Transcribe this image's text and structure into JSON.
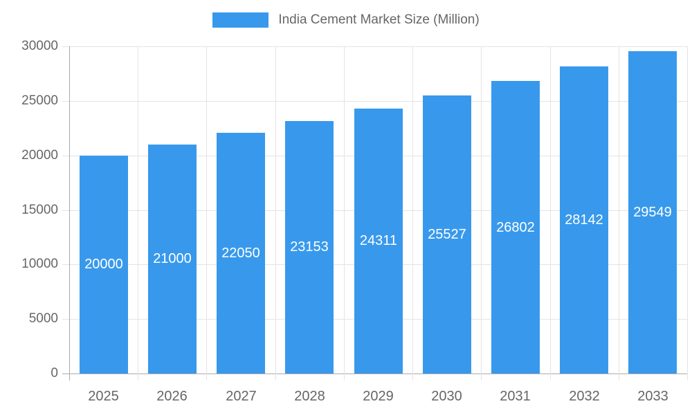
{
  "legend": {
    "label": "India Cement Market Size (Million)"
  },
  "chart_data": {
    "type": "bar",
    "title": "India Cement Market Size (Million)",
    "categories": [
      "2025",
      "2026",
      "2027",
      "2028",
      "2029",
      "2030",
      "2031",
      "2032",
      "2033"
    ],
    "series": [
      {
        "name": "India Cement Market Size (Million)",
        "values": [
          20000,
          21000,
          22050,
          23153,
          24311,
          25527,
          26802,
          28142,
          29549
        ]
      }
    ],
    "value_labels": [
      "20000",
      "21000",
      "22050",
      "23153",
      "24311",
      "25527",
      "26802",
      "28142",
      "29549"
    ],
    "xlabel": "",
    "ylabel": "",
    "ylim": [
      0,
      30000
    ],
    "y_ticks": [
      0,
      5000,
      10000,
      15000,
      20000,
      25000,
      30000
    ],
    "y_tick_labels": [
      "0",
      "5000",
      "10000",
      "15000",
      "20000",
      "25000",
      "30000"
    ],
    "grid": true,
    "legend_position": "top",
    "colors": {
      "bar": "#3899EC",
      "grid": "#e3e3e3",
      "axis_line": "#aaaaaa",
      "axis_text": "#666666",
      "value_text": "#ffffff",
      "background": "#ffffff"
    }
  }
}
